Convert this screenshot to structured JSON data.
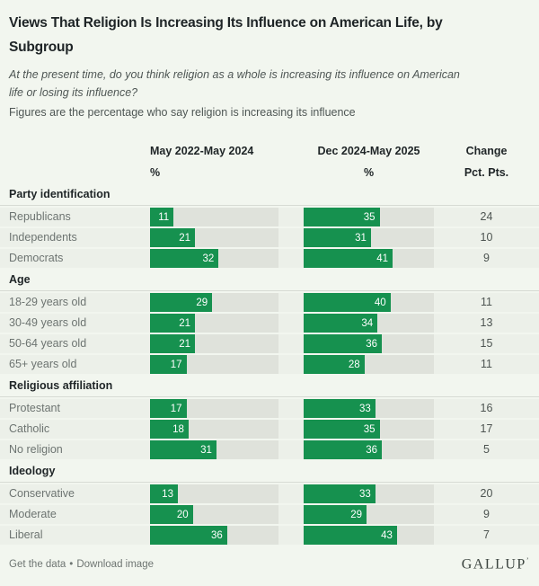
{
  "header": {
    "title_lines": [
      "Views That Religion Is Increasing Its Influence on American Life, by",
      "Subgroup"
    ],
    "question_lines": [
      "At the present time, do you think religion as a whole is increasing its influence on American",
      "life or losing its influence?"
    ],
    "note": "Figures are the percentage who say religion is increasing its influence"
  },
  "columns": {
    "period1": {
      "label": "May 2022-May 2024",
      "unit": "%"
    },
    "period2": {
      "label": "Dec 2024-May 2025",
      "unit": "%"
    },
    "change": {
      "label": "Change",
      "unit": "Pct. Pts."
    }
  },
  "colors": {
    "page_bg": "#f2f6ef",
    "band_bg": "#ecf0e9",
    "track_bg": "#dfe2db",
    "bar_green": "#16914f"
  },
  "chart_data": {
    "type": "bar",
    "title": "Views That Religion Is Increasing Its Influence on American Life, by Subgroup",
    "subtitle": "At the present time, do you think religion as a whole is increasing its influence on American life or losing its influence?",
    "note": "Figures are the percentage who say religion is increasing its influence",
    "unit": "%",
    "axis_max": 60,
    "series_labels": [
      "May 2022-May 2024",
      "Dec 2024-May 2025",
      "Change (Pct. Pts.)"
    ],
    "groups": [
      {
        "label": "Party identification",
        "rows": [
          {
            "label": "Republicans",
            "period1": 11,
            "period2": 35,
            "change": 24
          },
          {
            "label": "Independents",
            "period1": 21,
            "period2": 31,
            "change": 10
          },
          {
            "label": "Democrats",
            "period1": 32,
            "period2": 41,
            "change": 9
          }
        ]
      },
      {
        "label": "Age",
        "rows": [
          {
            "label": "18-29 years old",
            "period1": 29,
            "period2": 40,
            "change": 11
          },
          {
            "label": "30-49 years old",
            "period1": 21,
            "period2": 34,
            "change": 13
          },
          {
            "label": "50-64 years old",
            "period1": 21,
            "period2": 36,
            "change": 15
          },
          {
            "label": "65+ years old",
            "period1": 17,
            "period2": 28,
            "change": 11
          }
        ]
      },
      {
        "label": "Religious affiliation",
        "rows": [
          {
            "label": "Protestant",
            "period1": 17,
            "period2": 33,
            "change": 16
          },
          {
            "label": "Catholic",
            "period1": 18,
            "period2": 35,
            "change": 17
          },
          {
            "label": "No religion",
            "period1": 31,
            "period2": 36,
            "change": 5
          }
        ]
      },
      {
        "label": "Ideology",
        "rows": [
          {
            "label": "Conservative",
            "period1": 13,
            "period2": 33,
            "change": 20
          },
          {
            "label": "Moderate",
            "period1": 20,
            "period2": 29,
            "change": 9
          },
          {
            "label": "Liberal",
            "period1": 36,
            "period2": 43,
            "change": 7
          }
        ]
      }
    ]
  },
  "footer": {
    "get_data_label": "Get the data",
    "separator": "•",
    "download_label": "Download image",
    "logo": "GALLUP",
    "logo_mark": "ʼ"
  }
}
